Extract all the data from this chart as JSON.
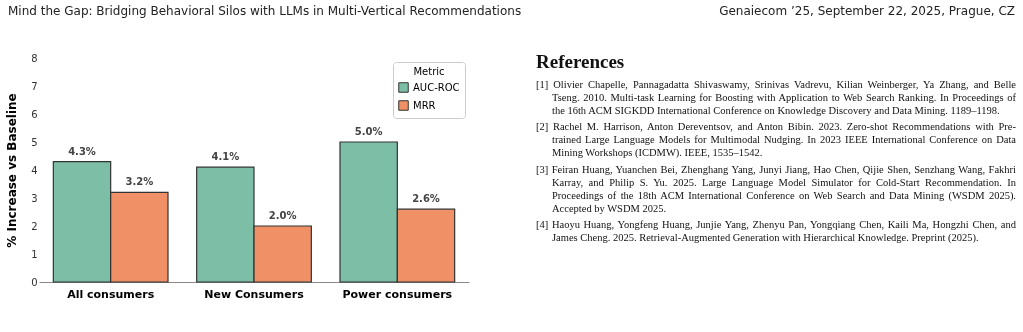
{
  "chart_data": {
    "type": "bar",
    "ylabel": "% Increase vs Baseline",
    "legend_title": "Metric",
    "legend": "top right",
    "grid": false,
    "categories": [
      "All consumers",
      "New Consumers",
      "Power consumers"
    ],
    "ylim": [
      0,
      8
    ],
    "yticks": [
      0,
      1,
      2,
      3,
      4,
      5,
      6,
      7,
      8
    ],
    "series": [
      {
        "name": "AUC-ROC",
        "color": "#7dbfa6",
        "values": [
          4.3,
          4.1,
          5.0
        ],
        "value_labels": [
          "4.3%",
          "4.1%",
          "5.0%"
        ]
      },
      {
        "name": "MRR",
        "color": "#ef9067",
        "values": [
          3.2,
          2.0,
          2.6
        ],
        "value_labels": [
          "3.2%",
          "2.0%",
          "2.6%"
        ]
      }
    ],
    "annotations": [
      "Mind the Gap: Bridging Behavioral Silos with LLMs in Multi-Vertical Recommendations",
      "Genaiecom ’25, September 22, 2025, Prague, CZ",
      "References",
      "[1] Olivier Chapelle, Pannagadatta Shivaswamy, Srinivas Vadrevu, Kilian Weinberger, Ya Zhang, and Belle Tseng. 2010. Multi-task Learning for Boosting with Application to Web Search Ranking. In Proceedings of the 16th ACM SIGKDD International Conference on Knowledge Discovery and Data Mining. 1189–1198.",
      "[2] Rachel M. Harrison, Anton Dereventsov, and Anton Bibin. 2023. Zero-shot Recommendations with Pre-trained Large Language Models for Multimodal Nudging. In 2023 IEEE International Conference on Data Mining Workshops (ICDMW). IEEE, 1535–1542.",
      "[3] Feiran Huang, Yuanchen Bei, Zhenghang Yang, Junyi Jiang, Hao Chen, Qijie Shen, Senzhang Wang, Fakhri Karray, and Philip S. Yu. 2025. Large Language Model Simulator for Cold-Start Recommendation. In Proceedings of the 18th ACM International Conference on Web Search and Data Mining (WSDM 2025). Accepted by WSDM 2025.",
      "[4] Haoyu Huang, Yongfeng Huang, Junjie Yang, Zhenyu Pan, Yongqiang Chen, Kaili Ma, Hongzhi Chen, and James Cheng. 2025. Retrieval-Augmented Generation with Hierarchical Knowledge. Preprint (2025)."
    ]
  }
}
